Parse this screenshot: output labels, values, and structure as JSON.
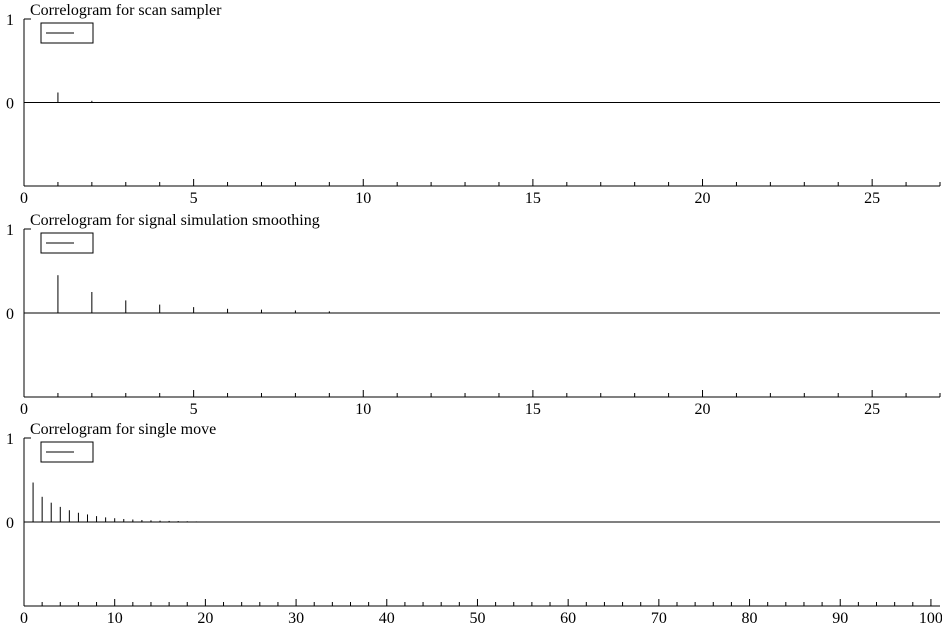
{
  "chart_data": [
    {
      "type": "bar",
      "title": "Correlogram for scan sampler",
      "legend": {
        "placement": "top-left",
        "entries": [
          ""
        ]
      },
      "xlim": [
        0,
        27
      ],
      "ylim": [
        -1,
        1
      ],
      "xticks": [
        0,
        5,
        10,
        15,
        20,
        25
      ],
      "yticks": [
        1,
        0
      ],
      "grid": false,
      "x": [
        1,
        2
      ],
      "values": [
        0.12,
        0.02
      ]
    },
    {
      "type": "bar",
      "title": "Correlogram for signal simulation smoothing",
      "legend": {
        "placement": "top-left",
        "entries": [
          ""
        ]
      },
      "xlim": [
        0,
        27
      ],
      "ylim": [
        -1,
        1
      ],
      "xticks": [
        0,
        5,
        10,
        15,
        20,
        25
      ],
      "yticks": [
        1,
        0
      ],
      "grid": false,
      "x": [
        1,
        2,
        3,
        4,
        5,
        6,
        7,
        8,
        9
      ],
      "values": [
        0.45,
        0.25,
        0.15,
        0.1,
        0.07,
        0.05,
        0.04,
        0.03,
        0.02
      ]
    },
    {
      "type": "bar",
      "title": "Correlogram for single move",
      "legend": {
        "placement": "top-left",
        "entries": [
          ""
        ]
      },
      "xlim": [
        0,
        101
      ],
      "ylim": [
        -1,
        1
      ],
      "xticks": [
        0,
        10,
        20,
        30,
        40,
        50,
        60,
        70,
        80,
        90,
        100
      ],
      "yticks": [
        1,
        0
      ],
      "grid": false,
      "x": [
        1,
        2,
        3,
        4,
        5,
        6,
        7,
        8,
        9,
        10,
        11,
        12,
        13,
        14,
        15,
        16,
        17,
        18,
        19,
        20
      ],
      "values": [
        0.47,
        0.3,
        0.23,
        0.18,
        0.14,
        0.11,
        0.09,
        0.07,
        0.055,
        0.045,
        0.036,
        0.03,
        0.024,
        0.02,
        0.016,
        0.013,
        0.011,
        0.009,
        0.007,
        0.006
      ]
    }
  ]
}
